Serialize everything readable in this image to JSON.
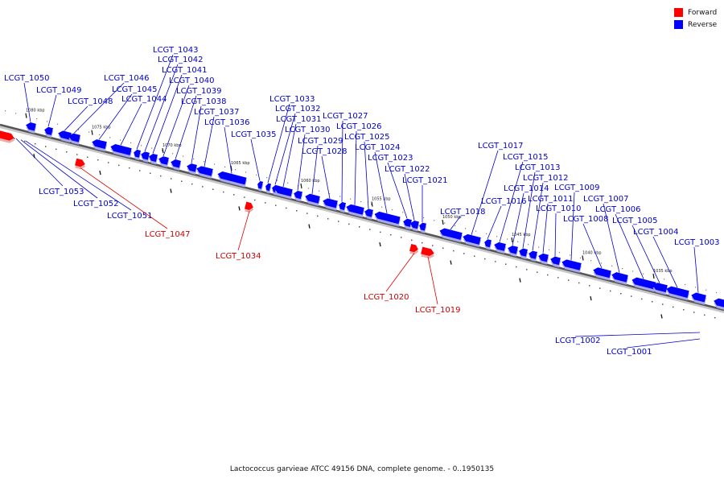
{
  "legend": [
    {
      "label": "Forward",
      "color": "#ff0000"
    },
    {
      "label": "Reverse",
      "color": "#0000ff"
    }
  ],
  "caption": "Lactococcus garvieae ATCC 49156 DNA, complete genome. - 0..1950135",
  "scale_labels": [
    "1080 kbp",
    "1075 kbp",
    "1070 kbp",
    "1065 kbp",
    "1060 kbp",
    "1055 kbp",
    "1050 kbp",
    "1045 kbp",
    "1040 kbp",
    "1035 kbp"
  ],
  "reverse_genes": [
    "LCGT_1050",
    "LCGT_1049",
    "LCGT_1048",
    "LCGT_1046",
    "LCGT_1045",
    "LCGT_1044",
    "LCGT_1043",
    "LCGT_1042",
    "LCGT_1041",
    "LCGT_1040",
    "LCGT_1039",
    "LCGT_1038",
    "LCGT_1037",
    "LCGT_1036",
    "LCGT_1035",
    "LCGT_1033",
    "LCGT_1032",
    "LCGT_1031",
    "LCGT_1030",
    "LCGT_1029",
    "LCGT_1028",
    "LCGT_1027",
    "LCGT_1026",
    "LCGT_1025",
    "LCGT_1024",
    "LCGT_1023",
    "LCGT_1022",
    "LCGT_1021",
    "LCGT_1018",
    "LCGT_1017",
    "LCGT_1016",
    "LCGT_1015",
    "LCGT_1014",
    "LCGT_1013",
    "LCGT_1012",
    "LCGT_1011",
    "LCGT_1010",
    "LCGT_1009",
    "LCGT_1008",
    "LCGT_1007",
    "LCGT_1006",
    "LCGT_1005",
    "LCGT_1004",
    "LCGT_1003",
    "LCGT_1053",
    "LCGT_1052",
    "LCGT_1051",
    "LCGT_1002",
    "LCGT_1001"
  ],
  "forward_genes": [
    "LCGT_1047",
    "LCGT_1034",
    "LCGT_1020",
    "LCGT_1019"
  ]
}
